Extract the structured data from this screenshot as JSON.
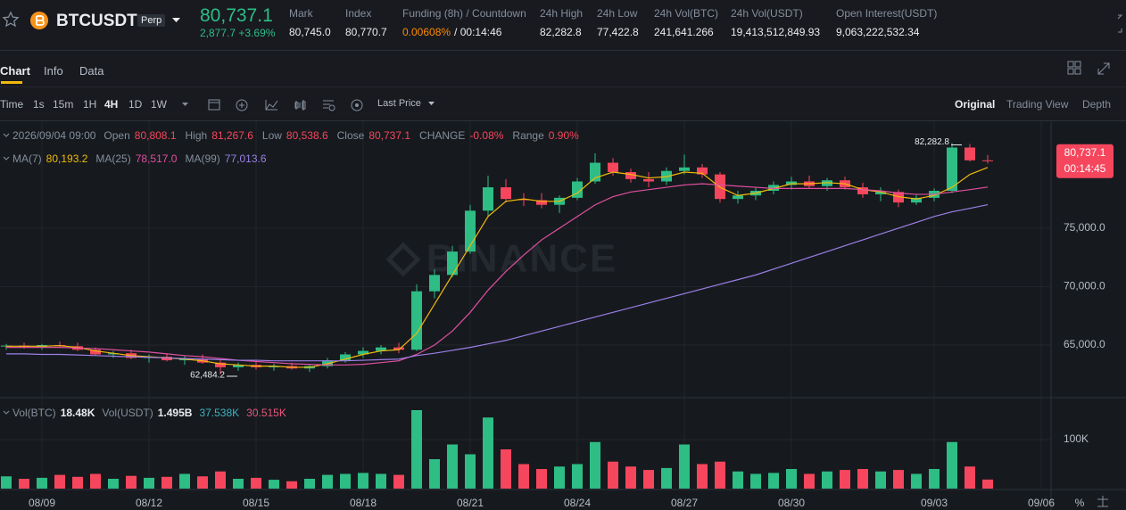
{
  "header": {
    "symbol": "BTCUSDT",
    "badge": "Perp",
    "price": "80,737.1",
    "change": "2,877.7",
    "change_pct": "+3.69%",
    "stats": [
      {
        "label": "Mark",
        "value": "80,745.0"
      },
      {
        "label": "Index",
        "value": "80,770.7"
      },
      {
        "label": "Funding (8h) / Countdown",
        "value": "0.00608%",
        "extra": "/ 00:14:46"
      },
      {
        "label": "24h High",
        "value": "82,282.8"
      },
      {
        "label": "24h Low",
        "value": "77,422.8"
      },
      {
        "label": "24h Vol(BTC)",
        "value": "241,641.266"
      },
      {
        "label": "24h Vol(USDT)",
        "value": "19,413,512,849.93"
      },
      {
        "label": "Open Interest(USDT)",
        "value": "9,063,222,532.34"
      }
    ]
  },
  "tabs": [
    "Chart",
    "Info",
    "Data"
  ],
  "toolbar": {
    "intervals": [
      "Time",
      "1s",
      "15m",
      "1H",
      "4H",
      "1D",
      "1W"
    ],
    "price_type": "Last Price",
    "views": [
      "Original",
      "Trading View",
      "Depth"
    ]
  },
  "chart_data": {
    "type": "candlestick",
    "watermark": "BINANCE",
    "legend": {
      "time": "2026/09/04 09:00",
      "fields": [
        {
          "label": "Open",
          "value": "80,808.1"
        },
        {
          "label": "High",
          "value": "81,267.6"
        },
        {
          "label": "Low",
          "value": "80,538.6"
        },
        {
          "label": "Close",
          "value": "80,737.1"
        },
        {
          "label": "CHANGE",
          "value": "-0.08%"
        },
        {
          "label": "Range",
          "value": "0.90%"
        }
      ]
    },
    "categories": [
      null,
      null,
      "08/09",
      null,
      null,
      null,
      null,
      null,
      "08/12",
      null,
      null,
      null,
      null,
      null,
      "08/15",
      null,
      null,
      null,
      null,
      null,
      "08/18",
      null,
      null,
      null,
      null,
      null,
      "08/21",
      null,
      null,
      null,
      null,
      null,
      "08/24",
      null,
      null,
      null,
      null,
      null,
      "08/27",
      null,
      null,
      null,
      null,
      null,
      "08/30",
      null,
      null,
      null,
      null,
      null,
      null,
      null,
      "09/03",
      null,
      null,
      null,
      null,
      null,
      "09/06"
    ],
    "open": [
      64900,
      64950,
      64800,
      65000,
      64900,
      64600,
      64200,
      64300,
      63900,
      64000,
      63700,
      63800,
      63500,
      63100,
      63300,
      63100,
      63200,
      63000,
      63200,
      63700,
      64200,
      64500,
      64800,
      64600,
      69600,
      71000,
      73000,
      76500,
      78500,
      77500,
      77400,
      77000,
      77600,
      79000,
      80600,
      79800,
      79200,
      79000,
      79900,
      80200,
      79600,
      77500,
      77800,
      78200,
      78700,
      79000,
      78600,
      79100,
      78500,
      77900,
      78100,
      77200,
      77600,
      78200,
      81900,
      80808.1,
      null,
      null,
      null
    ],
    "high": [
      65100,
      65200,
      65100,
      65300,
      65200,
      64800,
      64500,
      64600,
      64200,
      64300,
      64100,
      64200,
      63700,
      63500,
      63600,
      63400,
      63500,
      63400,
      63900,
      64400,
      64800,
      65000,
      65200,
      70200,
      71500,
      73500,
      77000,
      79500,
      79200,
      78000,
      78000,
      77800,
      79300,
      81400,
      81000,
      80100,
      79800,
      80200,
      81300,
      80500,
      79800,
      78200,
      78500,
      79000,
      79400,
      79500,
      79300,
      79400,
      78900,
      78500,
      78300,
      77900,
      78400,
      82282.8,
      82200,
      81267.6,
      null,
      null,
      null
    ],
    "low": [
      64600,
      64700,
      64600,
      64800,
      64500,
      64100,
      63900,
      63800,
      63500,
      63600,
      63300,
      63400,
      62484.2,
      62800,
      62900,
      62800,
      62900,
      62700,
      63000,
      63500,
      63900,
      64200,
      64300,
      64500,
      69000,
      70800,
      72800,
      76000,
      77200,
      76900,
      76700,
      76300,
      77400,
      78800,
      79500,
      78900,
      78500,
      78700,
      79600,
      79300,
      77200,
      77100,
      77400,
      77900,
      78300,
      78400,
      78200,
      78300,
      77600,
      77300,
      76800,
      77000,
      77300,
      78000,
      80700,
      80538.6,
      null,
      null,
      null
    ],
    "close": [
      64950,
      64800,
      65000,
      64900,
      64600,
      64200,
      64300,
      63900,
      64000,
      63700,
      63800,
      63500,
      63100,
      63300,
      63100,
      63200,
      63000,
      63200,
      63700,
      64200,
      64500,
      64800,
      64600,
      69600,
      71000,
      73000,
      76500,
      78500,
      77500,
      77400,
      77000,
      77600,
      79000,
      80600,
      79800,
      79200,
      79000,
      79900,
      80200,
      79600,
      77500,
      77800,
      78200,
      78700,
      79000,
      78600,
      79100,
      78500,
      77900,
      78100,
      77200,
      77600,
      78200,
      81900,
      80808.1,
      80737.1,
      null,
      null,
      null
    ],
    "up_color": "#2ebd85",
    "down_color": "#f6465d",
    "high_label": "82,282.8",
    "low_label": "62,484.2",
    "price_tag": {
      "price": "80,737.1",
      "countdown": "00:14:45"
    },
    "series": [
      {
        "name": "MA(7)",
        "color": "#f0b90b",
        "current": "80,193.2",
        "values": [
          64900,
          64900,
          64900,
          64950,
          64800,
          64500,
          64300,
          64100,
          64000,
          63900,
          63800,
          63650,
          63400,
          63300,
          63200,
          63200,
          63100,
          63100,
          63400,
          63800,
          64200,
          64500,
          64600,
          66000,
          68500,
          71000,
          73500,
          76000,
          77300,
          77500,
          77300,
          77300,
          78000,
          79300,
          79800,
          79600,
          79300,
          79400,
          79800,
          79700,
          78500,
          77800,
          78000,
          78400,
          78800,
          78800,
          78900,
          78800,
          78300,
          78100,
          77700,
          77500,
          77800,
          78500,
          79600,
          80193.2,
          null,
          null,
          null
        ]
      },
      {
        "name": "MA(25)",
        "color": "#e04fa0",
        "current": "78,517.0",
        "values": [
          64800,
          64800,
          64800,
          64800,
          64750,
          64700,
          64600,
          64500,
          64400,
          64250,
          64100,
          64000,
          63850,
          63700,
          63600,
          63500,
          63400,
          63350,
          63300,
          63300,
          63350,
          63500,
          63650,
          64200,
          65000,
          66200,
          67800,
          69700,
          71300,
          72700,
          74000,
          75000,
          76000,
          77000,
          77700,
          78100,
          78300,
          78500,
          78700,
          78800,
          78700,
          78600,
          78500,
          78400,
          78400,
          78400,
          78400,
          78400,
          78300,
          78200,
          78000,
          77900,
          77900,
          78100,
          78300,
          78517.0,
          null,
          null,
          null
        ]
      },
      {
        "name": "MA(99)",
        "color": "#9b7fe8",
        "current": "77,013.6",
        "values": [
          64250,
          64250,
          64200,
          64200,
          64150,
          64100,
          64050,
          64000,
          63950,
          63900,
          63850,
          63800,
          63750,
          63700,
          63700,
          63650,
          63650,
          63650,
          63650,
          63650,
          63700,
          63750,
          63800,
          64100,
          64300,
          64550,
          64800,
          65100,
          65400,
          65800,
          66200,
          66600,
          67000,
          67400,
          67800,
          68200,
          68600,
          69000,
          69400,
          69800,
          70200,
          70600,
          71000,
          71500,
          72000,
          72500,
          73000,
          73500,
          74000,
          74500,
          75000,
          75500,
          76000,
          76400,
          76700,
          77013.6,
          null,
          null,
          null
        ]
      }
    ],
    "ylim": [
      60500,
      84150
    ],
    "yticks": [
      {
        "value": 65000,
        "label": "65,000.0"
      },
      {
        "value": 70000,
        "label": "70,000.0"
      },
      {
        "value": 75000,
        "label": "75,000.0"
      }
    ],
    "grid": true,
    "volume": {
      "values": [
        25000,
        20000,
        22000,
        28000,
        24000,
        30000,
        20000,
        26000,
        22000,
        24000,
        30000,
        25000,
        35000,
        20000,
        22000,
        18000,
        15000,
        20000,
        28000,
        30000,
        32000,
        30000,
        28000,
        160000,
        60000,
        90000,
        70000,
        145000,
        80000,
        50000,
        40000,
        45000,
        50000,
        95000,
        55000,
        45000,
        38000,
        42000,
        90000,
        50000,
        55000,
        35000,
        30000,
        32000,
        40000,
        30000,
        35000,
        38000,
        40000,
        35000,
        38000,
        30000,
        40000,
        95000,
        45000,
        18480,
        null,
        null,
        null
      ],
      "ylim": [
        0,
        180000
      ],
      "yticks": [
        {
          "value": 100000,
          "label": "100K"
        }
      ],
      "legend": [
        {
          "label": "Vol(BTC)",
          "value": "18.48K"
        },
        {
          "label": "Vol(USDT)",
          "value": "1.495B"
        }
      ],
      "ma_values": [
        {
          "value": "37.538K",
          "color": "#3bb3c3"
        },
        {
          "value": "30.515K",
          "color": "#e8577a"
        }
      ]
    },
    "percent_toggle": "%"
  }
}
